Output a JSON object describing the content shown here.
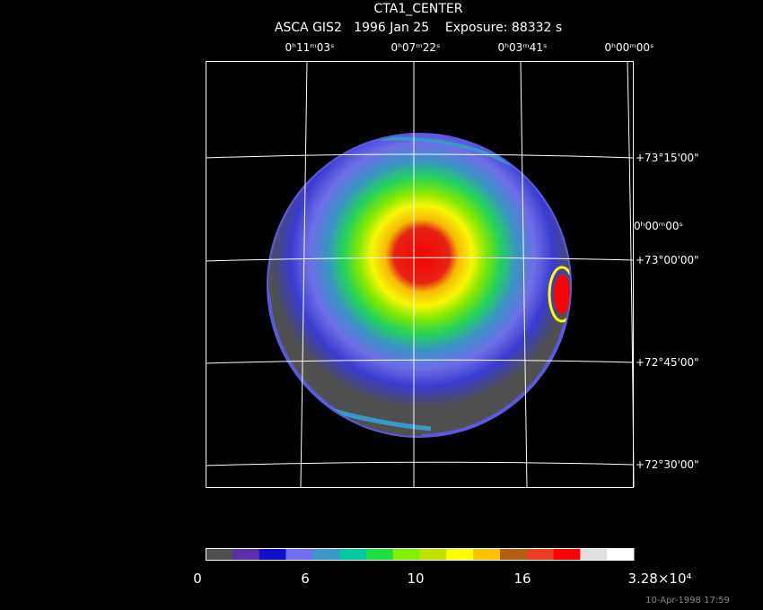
{
  "header": {
    "title": "CTA1_CENTER",
    "subtitle": "ASCA GIS2   1996 Jan 25    Exposure: 88332 s"
  },
  "axes": {
    "ra_labels": [
      "0ʰ11ᵐ03ˢ",
      "0ʰ07ᵐ22ˢ",
      "0ʰ03ᵐ41ˢ",
      "0ʰ00ᵐ00ˢ"
    ],
    "ra_side_label": "0ʰ00ᵐ00ˢ",
    "dec_labels": [
      "+73°15'00\"",
      "+73°00'00\"",
      "+72°45'00\"",
      "+72°30'00\""
    ]
  },
  "colorbar": {
    "colors": [
      "#505050",
      "#5a30a8",
      "#1010c8",
      "#7070f0",
      "#3898c8",
      "#00c8a0",
      "#20e040",
      "#80f000",
      "#c0e000",
      "#ffff00",
      "#ffc000",
      "#b06010",
      "#e84020",
      "#ff0000",
      "#e0e0e0",
      "#ffffff"
    ],
    "labels": [
      "0",
      "6",
      "10",
      "16",
      "3.28×10⁴"
    ]
  },
  "footer": {
    "timestamp": "10-Apr-1998 17:59"
  }
}
